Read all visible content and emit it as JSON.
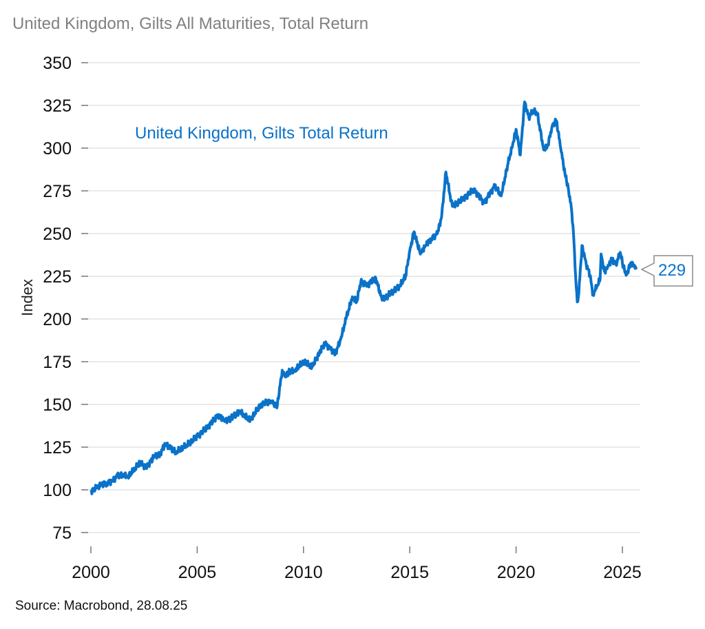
{
  "chart_data": {
    "type": "line",
    "title": "United Kingdom, Gilts All Maturities, Total Return",
    "xlabel": "",
    "ylabel": "Index",
    "xlim": [
      2000,
      2026
    ],
    "ylim": [
      75,
      350
    ],
    "yticks": [
      75,
      100,
      125,
      150,
      175,
      200,
      225,
      250,
      275,
      300,
      325,
      350
    ],
    "xticks": [
      2000,
      2005,
      2010,
      2015,
      2020,
      2025
    ],
    "grid": true,
    "legend": "none",
    "series_label": "United Kingdom, Gilts Total Return",
    "end_value_label": "229",
    "source": "Source: Macrobond, 28.08.25",
    "colors": {
      "line": "#0a72c8",
      "grid": "#e4e4e4",
      "title": "#808080"
    },
    "series": [
      {
        "name": "United Kingdom, Gilts Total Return",
        "x": [
          2000.0,
          2000.25,
          2000.5,
          2000.75,
          2001.0,
          2001.25,
          2001.5,
          2001.75,
          2002.0,
          2002.3,
          2002.6,
          2003.0,
          2003.25,
          2003.5,
          2003.75,
          2004.0,
          2004.5,
          2005.0,
          2005.5,
          2006.0,
          2006.3,
          2006.6,
          2007.0,
          2007.25,
          2007.5,
          2008.0,
          2008.5,
          2008.75,
          2009.0,
          2009.15,
          2009.3,
          2009.6,
          2010.0,
          2010.4,
          2010.75,
          2011.0,
          2011.25,
          2011.5,
          2011.75,
          2012.0,
          2012.3,
          2012.5,
          2012.7,
          2013.0,
          2013.4,
          2013.7,
          2014.0,
          2014.5,
          2014.8,
          2015.0,
          2015.2,
          2015.5,
          2015.75,
          2016.0,
          2016.3,
          2016.5,
          2016.7,
          2016.9,
          2017.0,
          2017.5,
          2018.0,
          2018.5,
          2019.0,
          2019.3,
          2019.6,
          2019.8,
          2020.0,
          2020.2,
          2020.4,
          2020.6,
          2020.8,
          2021.0,
          2021.3,
          2021.5,
          2021.7,
          2021.9,
          2022.1,
          2022.3,
          2022.45,
          2022.6,
          2022.7,
          2022.8,
          2022.88,
          2022.95,
          2023.1,
          2023.3,
          2023.5,
          2023.6,
          2023.8,
          2023.95,
          2024.0,
          2024.15,
          2024.3,
          2024.5,
          2024.7,
          2024.9,
          2025.05,
          2025.2,
          2025.4,
          2025.55,
          2025.65
        ],
        "values": [
          99,
          101,
          103,
          104,
          105,
          108,
          109,
          108,
          111,
          116,
          113,
          120,
          121,
          127,
          124,
          122,
          126,
          131,
          137,
          144,
          140,
          142,
          146,
          143,
          141,
          150,
          152,
          148,
          170,
          166,
          169,
          170,
          175,
          172,
          180,
          186,
          183,
          180,
          188,
          200,
          213,
          210,
          222,
          220,
          224,
          211,
          214,
          219,
          225,
          240,
          251,
          238,
          243,
          247,
          250,
          260,
          286,
          272,
          266,
          270,
          276,
          268,
          278,
          272,
          290,
          300,
          311,
          296,
          327,
          318,
          322,
          320,
          299,
          302,
          313,
          316,
          300,
          285,
          277,
          265,
          250,
          225,
          210,
          215,
          243,
          232,
          225,
          214,
          219,
          223,
          238,
          228,
          230,
          235,
          232,
          239,
          230,
          226,
          233,
          231,
          229
        ]
      }
    ]
  }
}
